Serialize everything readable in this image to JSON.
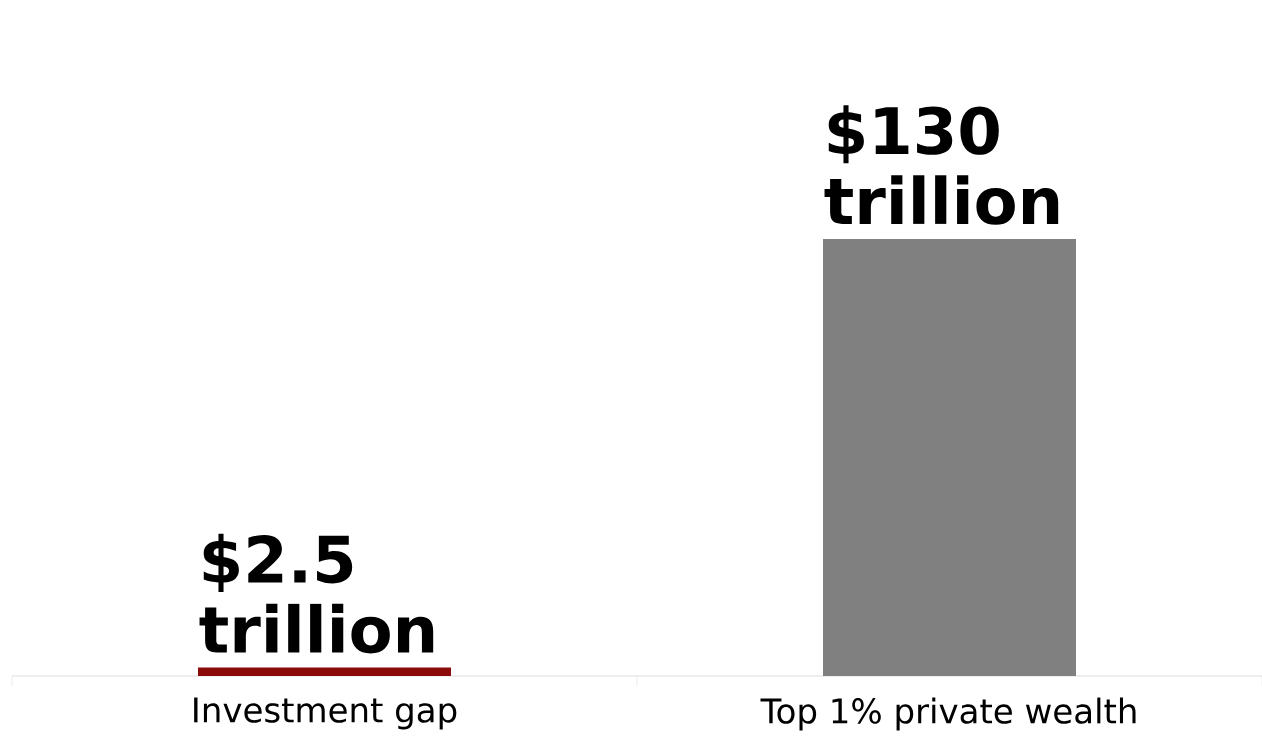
{
  "chart_data": {
    "type": "bar",
    "categories": [
      "Investment gap",
      "Top 1% private wealth"
    ],
    "values": [
      2.5,
      130
    ],
    "colors": [
      "#8b0a0a",
      "#808080"
    ],
    "value_labels": [
      "$2.5 trillion",
      "$130 trillion"
    ]
  }
}
